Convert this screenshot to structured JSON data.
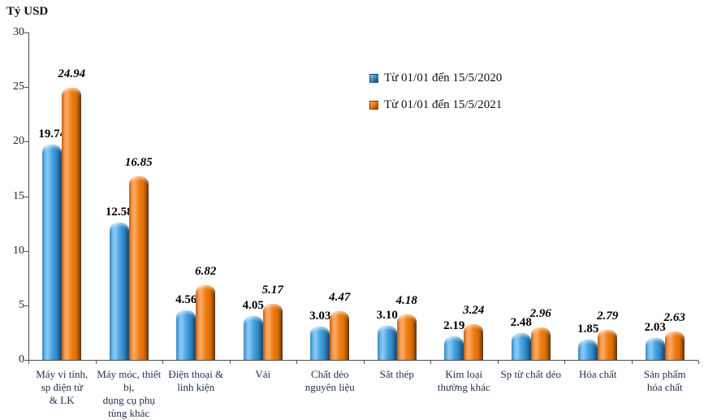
{
  "title": "Tỷ USD",
  "legend": {
    "items": [
      {
        "label": "Từ 01/01 đến 15/5/2020"
      },
      {
        "label": "Từ 01/01 đến 15/5/2021"
      }
    ]
  },
  "chart_data": {
    "type": "bar",
    "title": "Tỷ USD",
    "ylabel": "Tỷ USD",
    "xlabel": "",
    "ylim": [
      0,
      30
    ],
    "ytick_step": 5,
    "grid": false,
    "legend_position": "upper-center",
    "categories": [
      "Máy vi tính,\nsp điện tử\n& LK",
      "Máy móc, thiết\nbị,\ndụng cụ phụ\ntùng khác",
      "Điện thoại &\nlinh kiện",
      "Vải",
      "Chất dẻo\nnguyên liệu",
      "Sắt thép",
      "Kim loại\nthường khác",
      "Sp từ chất dẻo",
      "Hóa chất",
      "Sản phẩm\nhóa chất"
    ],
    "series": [
      {
        "name": "Từ 01/01 đến 15/5/2020",
        "color": "#2E86C4",
        "label_style": "bold",
        "values": [
          19.74,
          12.58,
          4.56,
          4.05,
          3.03,
          3.1,
          2.19,
          2.48,
          1.85,
          2.03
        ]
      },
      {
        "name": "Từ 01/01 đến 15/5/2021",
        "color": "#E8720C",
        "label_style": "bold-italic",
        "values": [
          24.94,
          16.85,
          6.82,
          5.17,
          4.47,
          4.18,
          3.24,
          2.96,
          2.79,
          2.63
        ]
      }
    ]
  }
}
